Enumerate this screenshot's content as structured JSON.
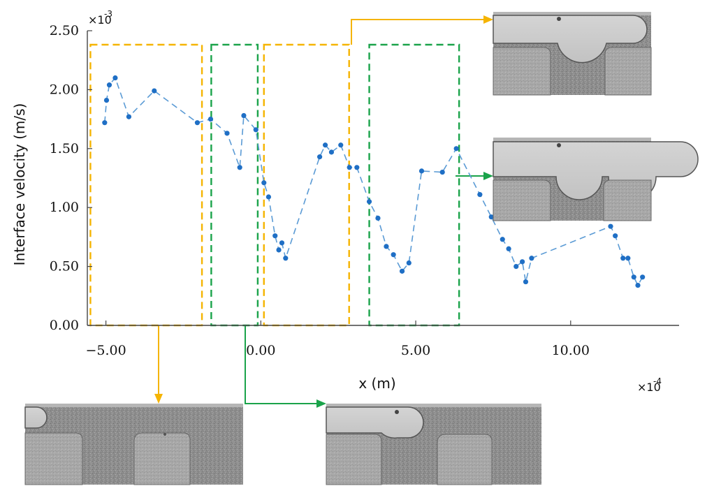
{
  "chart_data": {
    "type": "scatter",
    "xlabel": "x (m)",
    "ylabel": "Interface velocity (m/s)",
    "x_multiplier": "×10",
    "x_multiplier_exp": "-4",
    "y_multiplier": "×10",
    "y_multiplier_exp": "-3",
    "xlim": [
      -5.6,
      13.5
    ],
    "ylim": [
      0,
      2.5
    ],
    "x_ticks": [
      {
        "value": -5,
        "label": "−5.00"
      },
      {
        "value": 0,
        "label": "0.00"
      },
      {
        "value": 5,
        "label": "5.00"
      },
      {
        "value": 10,
        "label": "10.00"
      }
    ],
    "y_ticks": [
      {
        "value": 0,
        "label": "0.00"
      },
      {
        "value": 0.5,
        "label": "0.50"
      },
      {
        "value": 1,
        "label": "1.00"
      },
      {
        "value": 1.5,
        "label": "1.50"
      },
      {
        "value": 2,
        "label": "2.00"
      },
      {
        "value": 2.5,
        "label": "2.50"
      }
    ],
    "grid": false,
    "series": [
      {
        "line_style": "dashed",
        "color": "#5b9bd5",
        "marker_color": "#1f6fc5",
        "points": [
          [
            -5.04,
            1.72
          ],
          [
            -4.98,
            1.91
          ],
          [
            -4.89,
            2.04
          ],
          [
            -4.7,
            2.1
          ],
          [
            -4.26,
            1.77
          ],
          [
            -3.44,
            1.99
          ],
          [
            -2.05,
            1.72
          ],
          [
            -1.62,
            1.75
          ],
          [
            -1.09,
            1.63
          ],
          [
            -0.68,
            1.34
          ],
          [
            -0.55,
            1.78
          ],
          [
            -0.16,
            1.66
          ],
          [
            0.1,
            1.21
          ],
          [
            0.25,
            1.09
          ],
          [
            0.46,
            0.76
          ],
          [
            0.58,
            0.64
          ],
          [
            0.68,
            0.7
          ],
          [
            0.8,
            0.57
          ],
          [
            1.9,
            1.43
          ],
          [
            2.08,
            1.53
          ],
          [
            2.28,
            1.47
          ],
          [
            2.58,
            1.53
          ],
          [
            2.86,
            1.34
          ],
          [
            3.1,
            1.34
          ],
          [
            3.5,
            1.05
          ],
          [
            3.78,
            0.91
          ],
          [
            4.05,
            0.67
          ],
          [
            4.28,
            0.6
          ],
          [
            4.56,
            0.46
          ],
          [
            4.78,
            0.53
          ],
          [
            5.19,
            1.31
          ],
          [
            5.86,
            1.3
          ],
          [
            6.31,
            1.5
          ],
          [
            7.07,
            1.11
          ],
          [
            7.44,
            0.92
          ],
          [
            7.8,
            0.73
          ],
          [
            8.0,
            0.65
          ],
          [
            8.24,
            0.5
          ],
          [
            8.44,
            0.54
          ],
          [
            8.55,
            0.37
          ],
          [
            8.74,
            0.57
          ],
          [
            11.29,
            0.84
          ],
          [
            11.44,
            0.76
          ],
          [
            11.69,
            0.57
          ],
          [
            11.85,
            0.57
          ],
          [
            12.04,
            0.41
          ],
          [
            12.17,
            0.34
          ],
          [
            12.32,
            0.41
          ]
        ]
      }
    ],
    "regions": [
      {
        "x0": -5.5,
        "x1": -1.9,
        "color": "#f5b400"
      },
      {
        "x0": -1.6,
        "x1": -0.1,
        "color": "#1aa34a"
      },
      {
        "x0": 0.1,
        "x1": 2.85,
        "color": "#f5b400"
      },
      {
        "x0": 3.5,
        "x1": 6.4,
        "color": "#1aa34a"
      }
    ]
  },
  "insets": [
    {
      "id": "top-right",
      "state": "meniscus bulging into first cavity"
    },
    {
      "id": "middle-right",
      "state": "meniscus past second cavity"
    },
    {
      "id": "bottom-left",
      "state": "meniscus at channel entrance"
    },
    {
      "id": "bottom-middle",
      "state": "meniscus approaching first cavity"
    }
  ],
  "colors": {
    "yellow": "#f5b400",
    "green": "#1aa34a",
    "axis": "#444444"
  }
}
